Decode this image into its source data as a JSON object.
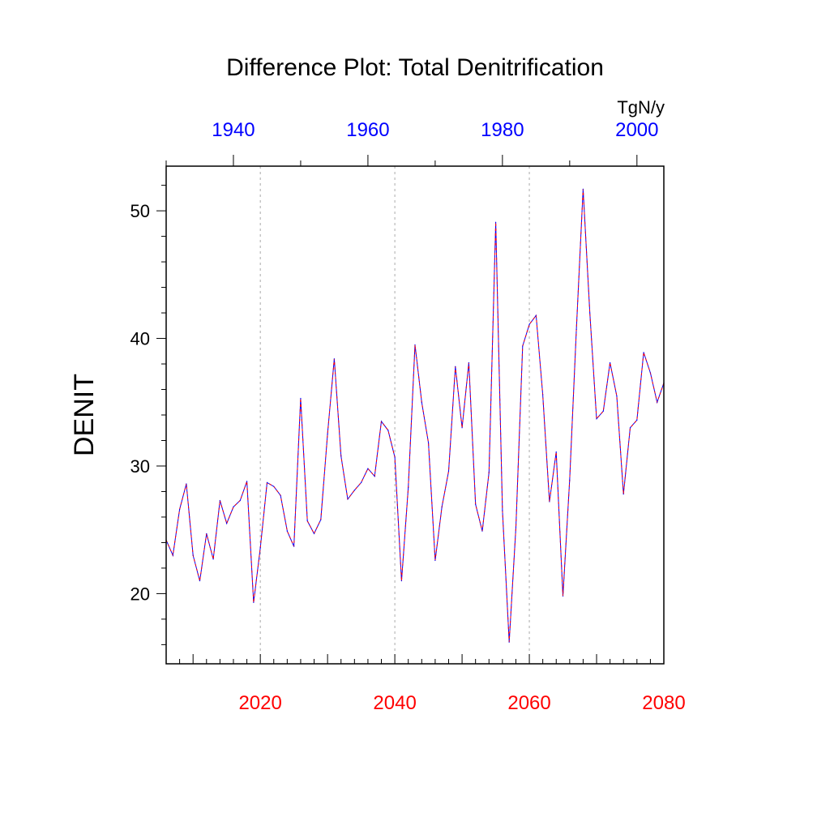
{
  "chart_data": {
    "type": "line",
    "title": "Difference Plot: Total Denitrification",
    "ylabel": "DENIT",
    "units": "TgN/y",
    "ylim": [
      14.5,
      53.5
    ],
    "xlim": [
      2006,
      2080
    ],
    "y_ticks": [
      20,
      30,
      40,
      50
    ],
    "x_ticks": [
      2020,
      2040,
      2060,
      2080
    ],
    "top_xlim": [
      1930,
      2004
    ],
    "top_x_ticks": [
      1940,
      1960,
      1980,
      2000
    ],
    "grid_x": [
      2020,
      2040,
      2060
    ],
    "colors": {
      "bottom_axis": "#ff0000",
      "top_axis": "#0000ff",
      "line_primary": "#0000ff",
      "line_dashed": "#ff0000",
      "grid": "#aaaaaa"
    },
    "x": [
      2006,
      2007,
      2008,
      2009,
      2010,
      2011,
      2012,
      2013,
      2014,
      2015,
      2016,
      2017,
      2018,
      2019,
      2020,
      2021,
      2022,
      2023,
      2024,
      2025,
      2026,
      2027,
      2028,
      2029,
      2030,
      2031,
      2032,
      2033,
      2034,
      2035,
      2036,
      2037,
      2038,
      2039,
      2040,
      2041,
      2042,
      2043,
      2044,
      2045,
      2046,
      2047,
      2048,
      2049,
      2050,
      2051,
      2052,
      2053,
      2054,
      2055,
      2056,
      2057,
      2058,
      2059,
      2060,
      2061,
      2062,
      2063,
      2064,
      2065,
      2066,
      2067,
      2068,
      2069,
      2070,
      2071,
      2072,
      2073,
      2074,
      2075,
      2076,
      2077,
      2078,
      2079,
      2080
    ],
    "series": [
      {
        "values": [
          24.2,
          23.0,
          26.6,
          28.6,
          23.0,
          21.0,
          24.7,
          22.7,
          27.3,
          25.5,
          26.8,
          27.3,
          28.8,
          19.3,
          23.6,
          28.7,
          28.4,
          27.7,
          24.9,
          23.7,
          35.3,
          25.7,
          24.7,
          25.8,
          32.5,
          38.4,
          30.8,
          27.4,
          28.1,
          28.7,
          29.8,
          29.2,
          33.5,
          32.8,
          30.7,
          21.0,
          28.3,
          39.5,
          35.0,
          31.8,
          22.6,
          26.8,
          29.6,
          37.8,
          33.0,
          38.1,
          27.0,
          24.9,
          29.5,
          49.1,
          26.5,
          16.2,
          25.2,
          39.4,
          41.1,
          41.8,
          35.6,
          27.2,
          31.1,
          19.8,
          28.9,
          40.7,
          51.7,
          42.0,
          33.7,
          34.3,
          38.1,
          35.5,
          27.8,
          33.0,
          33.6,
          38.9,
          37.3,
          35.0,
          36.5
        ]
      }
    ]
  }
}
